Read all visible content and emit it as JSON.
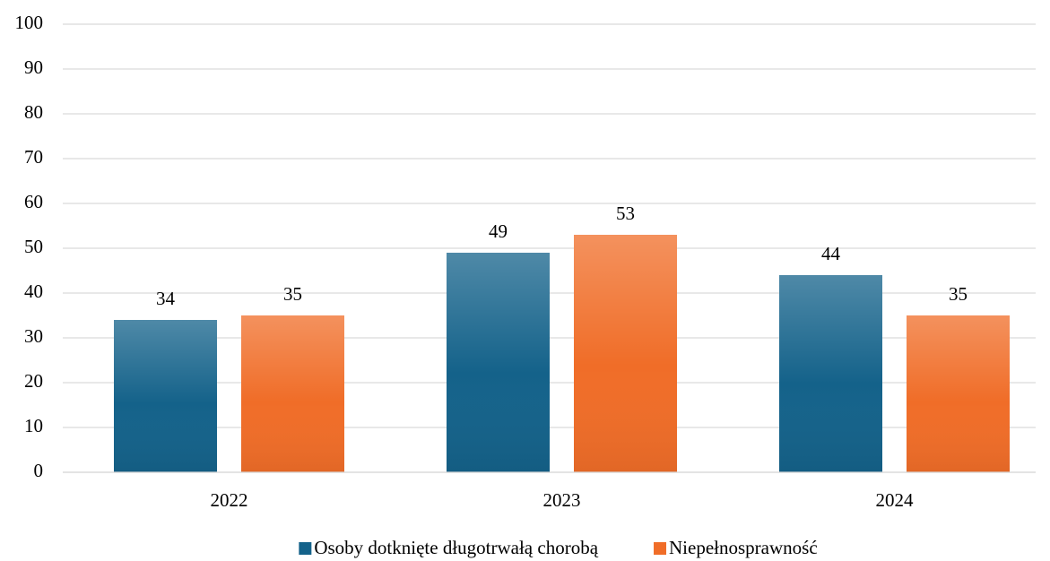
{
  "chart_data": {
    "type": "bar",
    "categories": [
      "2022",
      "2023",
      "2024"
    ],
    "series": [
      {
        "name": "Osoby dotknięte długotrwałą chorobą",
        "color": "#14628a",
        "values": [
          34,
          49,
          44
        ]
      },
      {
        "name": "Niepełnosprawność",
        "color": "#f06d28",
        "values": [
          35,
          53,
          35
        ]
      }
    ],
    "ylim": [
      0,
      100
    ],
    "yticks": [
      0,
      10,
      20,
      30,
      40,
      50,
      60,
      70,
      80,
      90,
      100
    ],
    "grid": true,
    "legend": "bottom"
  }
}
